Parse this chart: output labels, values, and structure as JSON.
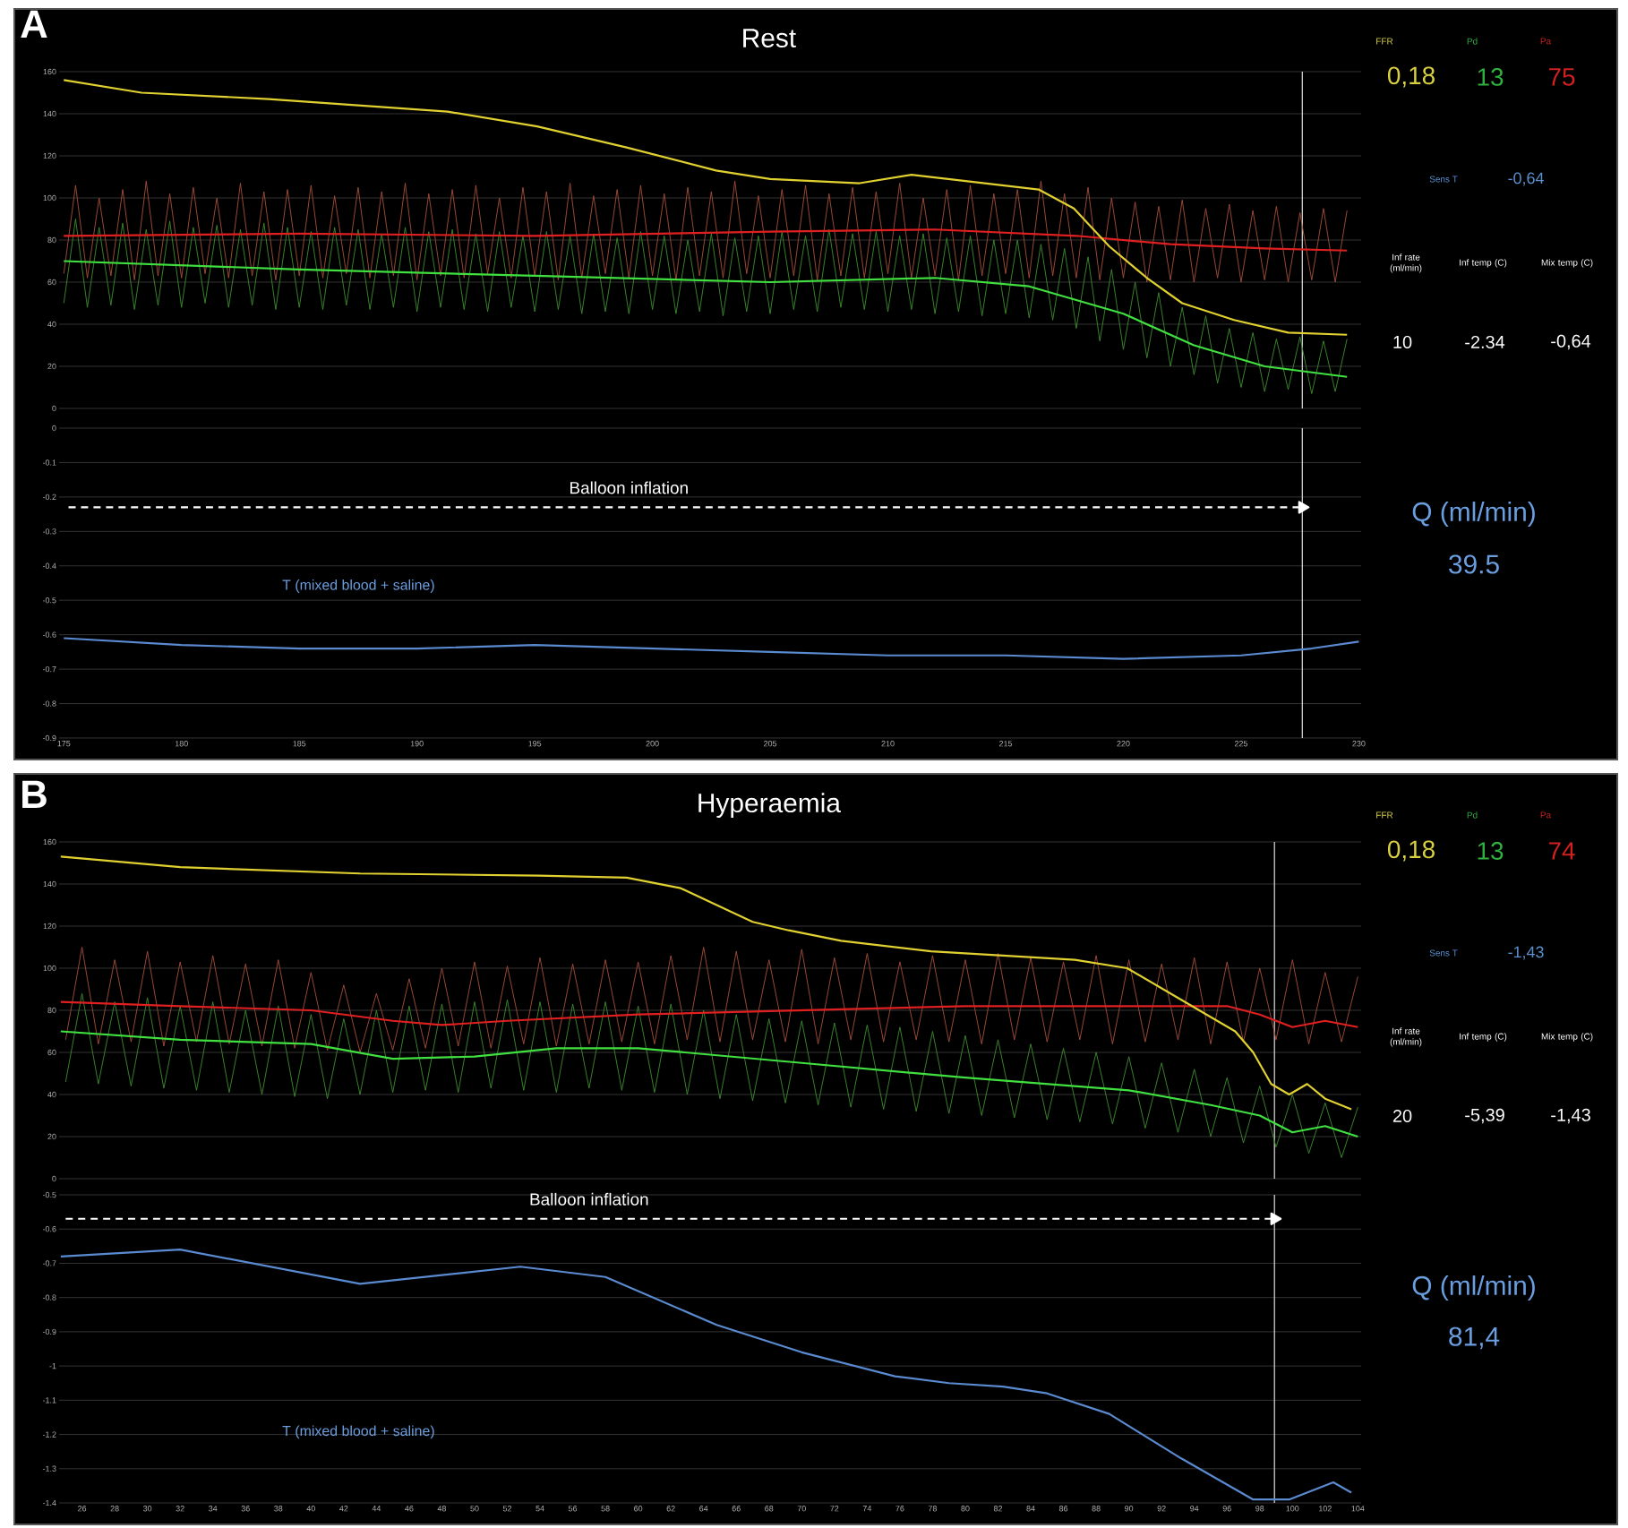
{
  "chart_data": [
    {
      "type": "line",
      "title": "Rest",
      "annotations": [
        "A"
      ],
      "xlim": [
        174.8,
        230.1
      ],
      "ylim": [
        0,
        160
      ],
      "yticks": [
        0,
        20,
        40,
        60,
        80,
        100,
        120,
        140,
        160
      ],
      "tick_labels": "y",
      "grid": "y",
      "ref_lines": [
        {
          "axis": "x",
          "value": 227.6,
          "color": "#e0e0e0"
        }
      ],
      "series": [
        {
          "color": "#a8503a",
          "x": [
            175,
            175.5,
            176,
            176.5,
            177,
            177.5,
            178,
            178.5,
            179,
            179.5,
            180,
            180.5,
            181,
            181.5,
            182,
            182.5,
            183,
            183.5,
            184,
            184.5,
            185,
            185.5,
            186,
            186.5,
            187,
            187.5,
            188,
            188.5,
            189,
            189.5,
            190,
            190.5,
            191,
            191.5,
            192,
            192.5,
            193,
            193.5,
            194,
            194.5,
            195,
            195.5,
            196,
            196.5,
            197,
            197.5,
            198,
            198.5,
            199,
            199.5,
            200,
            200.5,
            201,
            201.5,
            202,
            202.5,
            203,
            203.5,
            204,
            204.5,
            205,
            205.5,
            206,
            206.5,
            207,
            207.5,
            208,
            208.5,
            209,
            209.5,
            210,
            210.5,
            211,
            211.5,
            212,
            212.5,
            213,
            213.5,
            214,
            214.5,
            215,
            215.5,
            216,
            216.5,
            217,
            217.5,
            218,
            218.5,
            219,
            219.5,
            220,
            220.5,
            221,
            221.5,
            222,
            222.5,
            223,
            223.5,
            224,
            224.5,
            225,
            225.5,
            226,
            226.5,
            227,
            227.5,
            228,
            228.5,
            229,
            229.5
          ],
          "values": [
            64,
            106,
            62,
            100,
            63,
            104,
            61,
            108,
            63,
            102,
            62,
            105,
            64,
            100,
            62,
            107,
            63,
            103,
            61,
            104,
            63,
            106,
            62,
            101,
            64,
            105,
            62,
            103,
            63,
            107,
            61,
            102,
            63,
            104,
            62,
            106,
            64,
            100,
            62,
            105,
            63,
            103,
            61,
            107,
            62,
            101,
            64,
            104,
            62,
            106,
            63,
            102,
            61,
            105,
            63,
            103,
            62,
            108,
            64,
            101,
            62,
            104,
            63,
            106,
            61,
            102,
            63,
            105,
            62,
            103,
            64,
            107,
            62,
            100,
            63,
            104,
            61,
            106,
            63,
            102,
            64,
            104,
            62,
            108,
            63,
            102,
            62,
            105,
            61,
            100,
            62,
            98,
            60,
            96,
            61,
            99,
            60,
            95,
            62,
            97,
            60,
            94,
            61,
            96,
            60,
            93,
            61,
            95,
            60,
            94
          ]
        },
        {
          "color": "#3f8f2f",
          "x": [
            175,
            175.5,
            176,
            176.5,
            177,
            177.5,
            178,
            178.5,
            179,
            179.5,
            180,
            180.5,
            181,
            181.5,
            182,
            182.5,
            183,
            183.5,
            184,
            184.5,
            185,
            185.5,
            186,
            186.5,
            187,
            187.5,
            188,
            188.5,
            189,
            189.5,
            190,
            190.5,
            191,
            191.5,
            192,
            192.5,
            193,
            193.5,
            194,
            194.5,
            195,
            195.5,
            196,
            196.5,
            197,
            197.5,
            198,
            198.5,
            199,
            199.5,
            200,
            200.5,
            201,
            201.5,
            202,
            202.5,
            203,
            203.5,
            204,
            204.5,
            205,
            205.5,
            206,
            206.5,
            207,
            207.5,
            208,
            208.5,
            209,
            209.5,
            210,
            210.5,
            211,
            211.5,
            212,
            212.5,
            213,
            213.5,
            214,
            214.5,
            215,
            215.5,
            216,
            216.5,
            217,
            217.5,
            218,
            218.5,
            219,
            219.5,
            220,
            220.5,
            221,
            221.5,
            222,
            222.5,
            223,
            223.5,
            224,
            224.5,
            225,
            225.5,
            226,
            226.5,
            227,
            227.5,
            228,
            228.5,
            229,
            229.5
          ],
          "values": [
            50,
            90,
            48,
            86,
            49,
            88,
            47,
            85,
            49,
            89,
            48,
            86,
            50,
            87,
            48,
            85,
            49,
            88,
            47,
            86,
            48,
            84,
            47,
            86,
            49,
            85,
            47,
            83,
            48,
            86,
            46,
            84,
            48,
            85,
            47,
            83,
            46,
            84,
            48,
            82,
            46,
            84,
            47,
            82,
            45,
            83,
            46,
            81,
            45,
            84,
            47,
            82,
            45,
            80,
            46,
            83,
            44,
            81,
            46,
            82,
            45,
            84,
            47,
            82,
            46,
            85,
            48,
            83,
            47,
            84,
            46,
            82,
            47,
            83,
            45,
            81,
            46,
            82,
            44,
            80,
            45,
            80,
            43,
            78,
            42,
            76,
            38,
            72,
            32,
            66,
            28,
            60,
            24,
            55,
            20,
            48,
            16,
            44,
            12,
            38,
            10,
            36,
            8,
            33,
            9,
            34,
            7,
            32,
            8,
            33
          ]
        },
        {
          "color": "#e02020",
          "x": [
            175,
            185,
            195,
            205,
            212,
            218,
            222,
            226,
            229.5
          ],
          "values": [
            82,
            83,
            82,
            84,
            85,
            82,
            78,
            76,
            75
          ]
        },
        {
          "color": "#40e040",
          "x": [
            175,
            185,
            195,
            205,
            212,
            216,
            220,
            223,
            226,
            229.5
          ],
          "values": [
            70,
            66,
            63,
            60,
            62,
            58,
            45,
            30,
            20,
            15
          ]
        },
        {
          "color": "#e0d030",
          "x": [
            175,
            178.3,
            183.7,
            187.5,
            191.3,
            195.1,
            198.9,
            202.7,
            205,
            208.8,
            211,
            213.3,
            216.4,
            217.9,
            219.4,
            221,
            222.5,
            224.7,
            227,
            229.5
          ],
          "values": [
            156,
            150,
            147,
            144,
            141,
            134,
            124,
            113,
            109,
            107,
            111,
            108,
            104,
            95,
            77,
            62,
            50,
            42,
            36,
            35
          ]
        }
      ]
    },
    {
      "type": "line",
      "annotations": [
        {
          "text": "Balloon inflation",
          "x": 199,
          "y": -0.23
        },
        "T (mixed blood + saline)"
      ],
      "xlim": [
        174.8,
        230.1
      ],
      "xticks": [
        175,
        180,
        185,
        190,
        195,
        200,
        205,
        210,
        215,
        220,
        225,
        230
      ],
      "ylim": [
        -0.9,
        0
      ],
      "yticks": [
        0,
        -0.1,
        -0.2,
        -0.3,
        -0.4,
        -0.5,
        -0.6,
        -0.7,
        -0.8,
        -0.9
      ],
      "grid": "y",
      "ref_lines": [
        {
          "axis": "x",
          "value": 227.6,
          "color": "#e0e0e0"
        }
      ],
      "series": [
        {
          "color": "#5a8ad0",
          "x": [
            175,
            180,
            185,
            190,
            195,
            200,
            205,
            210,
            215,
            220,
            225,
            228,
            230
          ],
          "values": [
            -0.61,
            -0.63,
            -0.64,
            -0.64,
            -0.63,
            -0.64,
            -0.65,
            -0.66,
            -0.66,
            -0.67,
            -0.66,
            -0.64,
            -0.62
          ]
        },
        {
          "color": "#ffffff",
          "line_style": "dashed",
          "marker": "triangle",
          "x": [
            175.2,
            227.6
          ],
          "values": [
            -0.23,
            -0.23
          ]
        }
      ]
    },
    {
      "type": "other",
      "annotations": [
        "FFR",
        "Pd",
        "Pa",
        "0,18",
        "13",
        "75",
        "Sens T",
        "-0,64",
        "Inf rate (ml/min)",
        "Inf temp (C)",
        "Mix temp (C)",
        "10",
        "-2.34",
        "-0,64",
        "Q (ml/min)",
        "39.5"
      ]
    },
    {
      "type": "line",
      "title": "Hyperaemia",
      "annotations": [
        "B"
      ],
      "xlim": [
        24.6,
        104.2
      ],
      "ylim": [
        0,
        160
      ],
      "yticks": [
        0,
        20,
        40,
        60,
        80,
        100,
        120,
        140,
        160
      ],
      "tick_labels": "y",
      "grid": "y",
      "ref_lines": [
        {
          "axis": "x",
          "value": 98.9,
          "color": "#e0e0e0"
        }
      ],
      "series": [
        {
          "color": "#a8503a",
          "x": [
            25,
            26,
            27,
            28,
            29,
            30,
            31,
            32,
            33,
            34,
            35,
            36,
            37,
            38,
            39,
            40,
            41,
            42,
            43,
            44,
            45,
            46,
            47,
            48,
            49,
            50,
            51,
            52,
            53,
            54,
            55,
            56,
            57,
            58,
            59,
            60,
            61,
            62,
            63,
            64,
            65,
            66,
            67,
            68,
            69,
            70,
            71,
            72,
            73,
            74,
            75,
            76,
            77,
            78,
            79,
            80,
            81,
            82,
            83,
            84,
            85,
            86,
            87,
            88,
            89,
            90,
            91,
            92,
            93,
            94,
            95,
            96,
            97,
            98,
            99,
            100,
            101,
            102,
            103,
            104
          ],
          "values": [
            66,
            110,
            64,
            104,
            65,
            108,
            63,
            103,
            65,
            106,
            64,
            102,
            63,
            104,
            62,
            98,
            61,
            92,
            60,
            88,
            61,
            95,
            62,
            100,
            63,
            103,
            62,
            101,
            64,
            105,
            63,
            102,
            64,
            104,
            65,
            103,
            64,
            106,
            66,
            110,
            65,
            108,
            66,
            104,
            65,
            109,
            64,
            105,
            66,
            107,
            65,
            103,
            66,
            106,
            65,
            104,
            64,
            107,
            66,
            105,
            65,
            103,
            66,
            106,
            64,
            104,
            65,
            102,
            66,
            105,
            64,
            103,
            65,
            100,
            66,
            104,
            64,
            98,
            65,
            96
          ]
        },
        {
          "color": "#3f8f2f",
          "x": [
            25,
            26,
            27,
            28,
            29,
            30,
            31,
            32,
            33,
            34,
            35,
            36,
            37,
            38,
            39,
            40,
            41,
            42,
            43,
            44,
            45,
            46,
            47,
            48,
            49,
            50,
            51,
            52,
            53,
            54,
            55,
            56,
            57,
            58,
            59,
            60,
            61,
            62,
            63,
            64,
            65,
            66,
            67,
            68,
            69,
            70,
            71,
            72,
            73,
            74,
            75,
            76,
            77,
            78,
            79,
            80,
            81,
            82,
            83,
            84,
            85,
            86,
            87,
            88,
            89,
            90,
            91,
            92,
            93,
            94,
            95,
            96,
            97,
            98,
            99,
            100,
            101,
            102,
            103,
            104
          ],
          "values": [
            46,
            88,
            45,
            84,
            44,
            86,
            43,
            82,
            42,
            84,
            41,
            80,
            40,
            82,
            39,
            78,
            38,
            76,
            40,
            80,
            41,
            82,
            42,
            83,
            41,
            84,
            43,
            85,
            42,
            84,
            41,
            83,
            43,
            84,
            42,
            82,
            41,
            83,
            40,
            80,
            38,
            78,
            37,
            76,
            36,
            75,
            35,
            74,
            34,
            73,
            33,
            72,
            32,
            70,
            31,
            68,
            30,
            66,
            29,
            64,
            28,
            62,
            27,
            60,
            26,
            58,
            24,
            55,
            22,
            52,
            20,
            48,
            17,
            44,
            15,
            40,
            12,
            36,
            10,
            34
          ]
        },
        {
          "color": "#e02020",
          "x": [
            24.7,
            32,
            40,
            45,
            48,
            52,
            60,
            70,
            80,
            90,
            96,
            98,
            100,
            102,
            104
          ],
          "values": [
            84,
            82,
            80,
            75,
            73,
            75,
            78,
            80,
            82,
            82,
            82,
            78,
            72,
            75,
            72
          ]
        },
        {
          "color": "#40e040",
          "x": [
            24.7,
            32,
            40,
            45,
            50,
            55,
            60,
            70,
            80,
            90,
            95,
            98,
            100,
            102,
            104
          ],
          "values": [
            70,
            66,
            64,
            57,
            58,
            62,
            62,
            55,
            48,
            42,
            35,
            30,
            22,
            25,
            20
          ]
        },
        {
          "color": "#e0d030",
          "x": [
            24.7,
            32,
            43,
            53.9,
            59.3,
            62.6,
            67,
            69.2,
            72.4,
            77.9,
            82.3,
            86.7,
            89.9,
            93.2,
            96.5,
            97.6,
            98.7,
            99.8,
            100.9,
            102,
            103.6
          ],
          "values": [
            153,
            148,
            145,
            144,
            143,
            138,
            122,
            118,
            113,
            108,
            106,
            104,
            100,
            85,
            70,
            60,
            45,
            40,
            45,
            38,
            33
          ]
        }
      ]
    },
    {
      "type": "line",
      "annotations": [
        {
          "text": "Balloon inflation",
          "x": 57,
          "y": -0.57
        },
        "T (mixed blood + saline)"
      ],
      "xlim": [
        24.6,
        104.2
      ],
      "xticks": [
        26,
        28,
        30,
        32,
        34,
        36,
        38,
        40,
        42,
        44,
        46,
        48,
        50,
        52,
        54,
        56,
        58,
        60,
        62,
        64,
        66,
        68,
        70,
        72,
        74,
        76,
        78,
        80,
        82,
        84,
        86,
        88,
        90,
        92,
        94,
        96,
        98,
        100,
        102,
        104
      ],
      "ylim": [
        -1.4,
        -0.5
      ],
      "yticks": [
        -0.5,
        -0.6,
        -0.7,
        -0.8,
        -0.9,
        -1,
        -1.1,
        -1.2,
        -1.3,
        -1.4
      ],
      "grid": "y",
      "ref_lines": [
        {
          "axis": "x",
          "value": 98.9,
          "color": "#e0e0e0"
        }
      ],
      "series": [
        {
          "color": "#5a8ad0",
          "x": [
            24.7,
            32,
            43,
            52.8,
            58,
            64.8,
            70,
            75.7,
            79,
            82.3,
            85,
            88.8,
            93.2,
            97.6,
            99.8,
            102.5,
            103.6
          ],
          "values": [
            -0.68,
            -0.66,
            -0.76,
            -0.71,
            -0.74,
            -0.88,
            -0.96,
            -1.03,
            -1.05,
            -1.06,
            -1.08,
            -1.14,
            -1.27,
            -1.39,
            -1.39,
            -1.34,
            -1.37
          ]
        },
        {
          "color": "#ffffff",
          "line_style": "dashed",
          "marker": "triangle",
          "x": [
            25,
            98.9
          ],
          "values": [
            -0.57,
            -0.57
          ]
        }
      ]
    },
    {
      "type": "other",
      "annotations": [
        "FFR",
        "Pd",
        "Pa",
        "0,18",
        "13",
        "74",
        "Sens T",
        "-1,43",
        "Inf rate (ml/min)",
        "Inf temp (C)",
        "Mix temp (C)",
        "20",
        "-5,39",
        "-1,43",
        "Q (ml/min)",
        "81,4"
      ]
    }
  ]
}
